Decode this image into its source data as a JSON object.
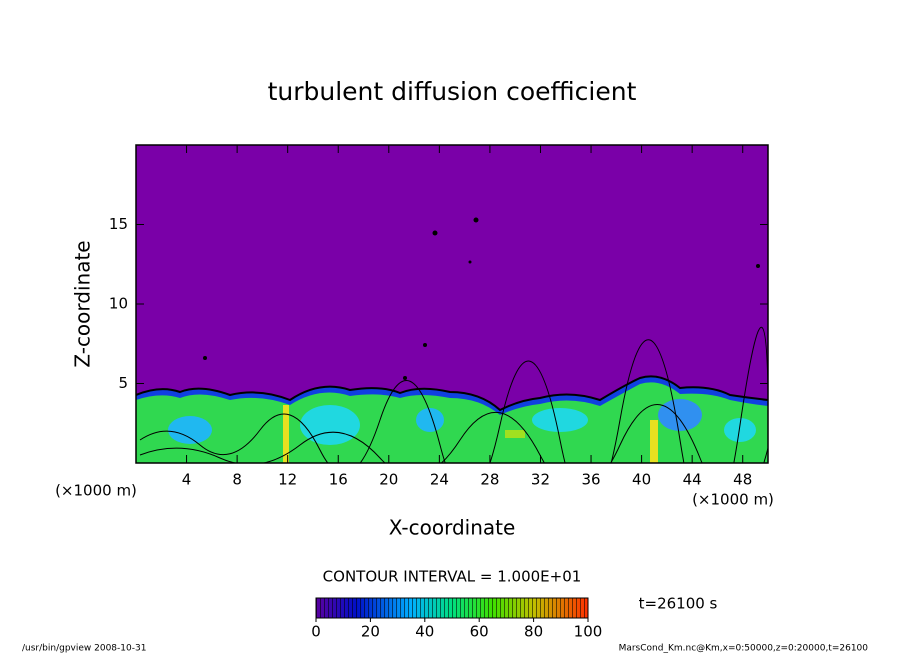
{
  "chart_data": {
    "type": "contour",
    "title": "turbulent diffusion coefficient",
    "xlabel": "X-coordinate",
    "ylabel": "Z-coordinate",
    "xunit": "(×1000 m)",
    "yunit": "(×1000 m)",
    "xlim": [
      0,
      50
    ],
    "ylim": [
      0,
      20
    ],
    "xticks": [
      4,
      8,
      12,
      16,
      20,
      24,
      28,
      32,
      36,
      40,
      44,
      48
    ],
    "yticks": [
      5,
      10,
      15
    ],
    "contour_interval": "CONTOUR INTERVAL = 1.000E+01",
    "time_label": "t=26100 s",
    "colorbar": {
      "lim": [
        0,
        100
      ],
      "ticks": [
        0,
        20,
        40,
        60,
        80,
        100
      ]
    },
    "footer_left": "/usr/bin/gpview  2008-10-31",
    "footer_right": "MarsCond_Km.nc@Km,x=0:50000,z=0:20000,t=26100"
  }
}
